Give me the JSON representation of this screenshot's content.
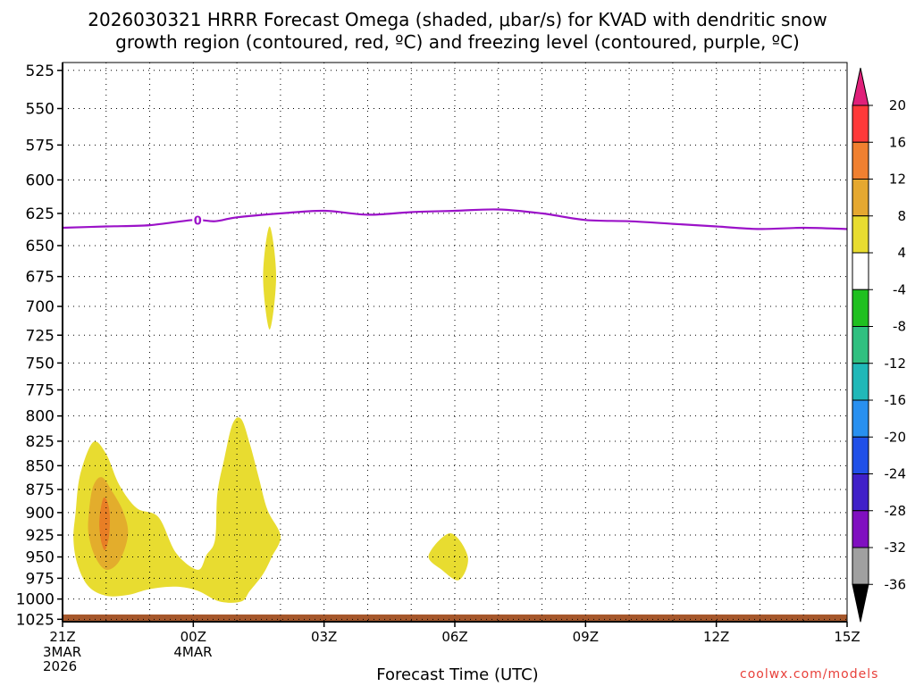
{
  "title_line1": "2026030321 HRRR Forecast Omega (shaded, μbar/s) for KVAD with dendritic snow",
  "title_line2": "growth region (contoured, red, ºC) and freezing level (contoured, purple, ºC)",
  "credit": "coolwx.com/models",
  "chart_data": {
    "type": "contour",
    "xlabel": "Forecast Time (UTC)",
    "x_ticks": [
      "21Z",
      "00Z",
      "03Z",
      "06Z",
      "09Z",
      "12Z",
      "15Z"
    ],
    "x_hours": [
      0,
      3,
      6,
      9,
      12,
      15,
      18
    ],
    "x_date_labels": [
      {
        "hour": 0,
        "lines": [
          "3MAR",
          "2026"
        ]
      },
      {
        "hour": 3,
        "lines": [
          "4MAR"
        ]
      }
    ],
    "y_ticks": [
      525,
      550,
      575,
      600,
      625,
      650,
      675,
      700,
      725,
      750,
      775,
      800,
      825,
      850,
      875,
      900,
      925,
      950,
      975,
      1000,
      1025
    ],
    "y_range_hpa": [
      520,
      1028
    ],
    "y_scale": "log-pressure",
    "grid": true,
    "freezing_level": {
      "label": "0",
      "label_at_hour": 3.1,
      "points": [
        [
          0,
          636
        ],
        [
          1,
          635
        ],
        [
          2,
          634
        ],
        [
          3,
          630
        ],
        [
          3.5,
          631
        ],
        [
          4,
          628
        ],
        [
          5,
          625
        ],
        [
          6,
          623
        ],
        [
          7,
          626
        ],
        [
          8,
          624
        ],
        [
          9,
          623
        ],
        [
          10,
          622
        ],
        [
          11,
          625
        ],
        [
          12,
          630
        ],
        [
          13,
          631
        ],
        [
          14,
          633
        ],
        [
          15,
          635
        ],
        [
          16,
          637
        ],
        [
          17,
          636
        ],
        [
          18,
          637
        ]
      ]
    },
    "omega_regions": [
      {
        "level": "4-8",
        "color": "#e8dc30",
        "points": [
          [
            0.3,
            900
          ],
          [
            0.4,
            860
          ],
          [
            0.7,
            826
          ],
          [
            1.0,
            838
          ],
          [
            1.3,
            870
          ],
          [
            1.7,
            895
          ],
          [
            2.2,
            905
          ],
          [
            2.6,
            945
          ],
          [
            3.1,
            965
          ],
          [
            3.3,
            948
          ],
          [
            3.5,
            930
          ],
          [
            3.55,
            880
          ],
          [
            3.7,
            845
          ],
          [
            3.9,
            808
          ],
          [
            4.1,
            803
          ],
          [
            4.3,
            828
          ],
          [
            4.5,
            862
          ],
          [
            4.7,
            897
          ],
          [
            5.0,
            926
          ],
          [
            4.8,
            950
          ],
          [
            4.6,
            970
          ],
          [
            4.3,
            990
          ],
          [
            4.1,
            1003
          ],
          [
            3.6,
            1003
          ],
          [
            3.1,
            990
          ],
          [
            2.6,
            985
          ],
          [
            2.0,
            988
          ],
          [
            1.5,
            995
          ],
          [
            1.0,
            996
          ],
          [
            0.6,
            985
          ],
          [
            0.35,
            960
          ],
          [
            0.25,
            930
          ]
        ]
      },
      {
        "level": "4-8",
        "color": "#e8dc30",
        "points": [
          [
            4.75,
            635
          ],
          [
            4.9,
            675
          ],
          [
            4.75,
            720
          ],
          [
            4.6,
            675
          ]
        ]
      },
      {
        "level": "4-8",
        "color": "#e8dc30",
        "points": [
          [
            8.4,
            948
          ],
          [
            8.9,
            923
          ],
          [
            9.3,
            950
          ],
          [
            9.1,
            977
          ],
          [
            8.7,
            965
          ]
        ]
      },
      {
        "level": "8-12",
        "color": "#e3ad2c",
        "points": [
          [
            0.6,
            902
          ],
          [
            0.7,
            872
          ],
          [
            0.9,
            862
          ],
          [
            1.15,
            878
          ],
          [
            1.4,
            900
          ],
          [
            1.5,
            925
          ],
          [
            1.3,
            955
          ],
          [
            1.0,
            965
          ],
          [
            0.75,
            950
          ],
          [
            0.6,
            925
          ]
        ]
      },
      {
        "level": "12-16",
        "color": "#e87e25",
        "points": [
          [
            0.85,
            905
          ],
          [
            0.92,
            886
          ],
          [
            1.0,
            885
          ],
          [
            1.08,
            900
          ],
          [
            1.07,
            925
          ],
          [
            0.98,
            942
          ],
          [
            0.9,
            935
          ],
          [
            0.85,
            920
          ]
        ]
      }
    ],
    "ground": {
      "color": "#a5572b",
      "top_hpa": 1019,
      "bottom_hpa": 1028
    },
    "colorbar": {
      "labels": [
        "20",
        "16",
        "12",
        "8",
        "4",
        "-4",
        "-8",
        "-12",
        "-16",
        "-20",
        "-24",
        "-28",
        "-32",
        "-36"
      ],
      "colors": [
        "#ff3a3a",
        "#f08030",
        "#e5a830",
        "#e8dc30",
        "#ffffff",
        "#20c020",
        "#30c080",
        "#20b8b8",
        "#2890f0",
        "#2050e8",
        "#4020c8",
        "#8010c0",
        "#a0a0a0"
      ],
      "top_arrow_color": "#e0207a",
      "bottom_arrow_color": "#000000"
    }
  }
}
